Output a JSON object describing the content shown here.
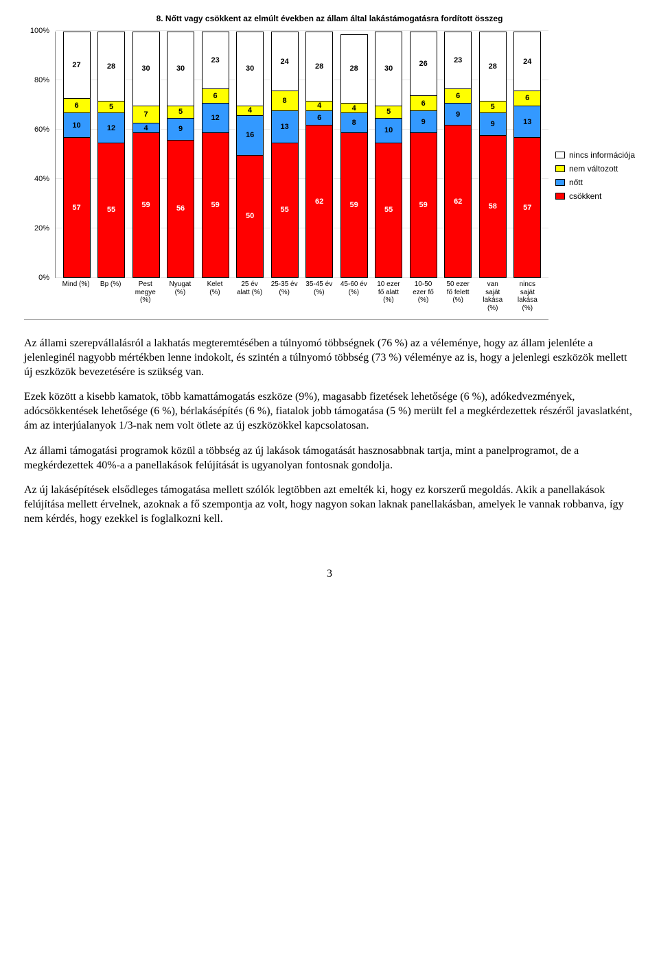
{
  "chart": {
    "title": "8. Nőtt vagy csökkent az elmúlt években az állam által lakástámogatásra fordított összeg",
    "type": "stacked-bar-100",
    "y_ticks": [
      "0%",
      "20%",
      "40%",
      "60%",
      "80%",
      "100%"
    ],
    "y_tick_step_pct": 20,
    "series": [
      {
        "key": "csokkent",
        "label": "csökkent",
        "color": "#ff0000",
        "text": "#ffffff"
      },
      {
        "key": "nott",
        "label": "nőtt",
        "color": "#3399ff",
        "text": "#000000"
      },
      {
        "key": "nem_valtozott",
        "label": "nem változott",
        "color": "#ffff00",
        "text": "#000000"
      },
      {
        "key": "nincs_info",
        "label": "nincs információja",
        "color": "#ffffff",
        "text": "#000000"
      }
    ],
    "categories": [
      "Mind (%)",
      "Bp (%)",
      "Pest megye (%)",
      "Nyugat (%)",
      "Kelet (%)",
      "25 év alatt (%)",
      "25-35 év (%)",
      "35-45 év (%)",
      "45-60 év (%)",
      "10 ezer fő alatt (%)",
      "10-50 ezer fő (%)",
      "50 ezer fő felett (%)",
      "van saját lakása (%)",
      "nincs saját lakása (%)"
    ],
    "data": [
      {
        "csokkent": 57,
        "nott": 10,
        "nem_valtozott": 6,
        "nincs_info": 27
      },
      {
        "csokkent": 55,
        "nott": 12,
        "nem_valtozott": 5,
        "nincs_info": 28
      },
      {
        "csokkent": 59,
        "nott": 4,
        "nem_valtozott": 7,
        "nincs_info": 30
      },
      {
        "csokkent": 56,
        "nott": 9,
        "nem_valtozott": 5,
        "nincs_info": 30
      },
      {
        "csokkent": 59,
        "nott": 12,
        "nem_valtozott": 6,
        "nincs_info": 23
      },
      {
        "csokkent": 50,
        "nott": 16,
        "nem_valtozott": 4,
        "nincs_info": 30
      },
      {
        "csokkent": 55,
        "nott": 13,
        "nem_valtozott": 8,
        "nincs_info": 24
      },
      {
        "csokkent": 62,
        "nott": 6,
        "nem_valtozott": 4,
        "nincs_info": 28
      },
      {
        "csokkent": 59,
        "nott": 8,
        "nem_valtozott": 4,
        "nincs_info": 28
      },
      {
        "csokkent": 55,
        "nott": 10,
        "nem_valtozott": 5,
        "nincs_info": 30
      },
      {
        "csokkent": 59,
        "nott": 9,
        "nem_valtozott": 6,
        "nincs_info": 26
      },
      {
        "csokkent": 62,
        "nott": 9,
        "nem_valtozott": 6,
        "nincs_info": 23
      },
      {
        "csokkent": 58,
        "nott": 9,
        "nem_valtozott": 5,
        "nincs_info": 28
      },
      {
        "csokkent": 57,
        "nott": 13,
        "nem_valtozott": 6,
        "nincs_info": 24
      }
    ],
    "grid_color": "#e5e5e5",
    "bar_border": "#000000",
    "legend_position": "right"
  },
  "paragraphs": {
    "p1": "Az állami szerepvállalásról a lakhatás megteremtésében a túlnyomó többségnek (76 %) az a véleménye, hogy az állam jelenléte a jelenleginél nagyobb mértékben lenne indokolt, és szintén a túlnyomó többség (73 %) véleménye az is, hogy a jelenlegi eszközök mellett új eszközök bevezetésére is szükség van.",
    "p2": "Ezek között a kisebb kamatok, több kamattámogatás eszköze (9%), magasabb fizetések lehetősége (6 %), adókedvezmények, adócsökkentések lehetősége (6 %), bérlakásépítés (6 %), fiatalok jobb támogatása (5 %) merült fel a megkérdezettek részéről javaslatként, ám az interjúalanyok 1/3-nak nem volt ötlete az új eszközökkel kapcsolatosan.",
    "p3": "Az állami támogatási programok közül a többség az új lakások támogatását hasznosabbnak tartja, mint a panelprogramot, de a megkérdezettek 40%-a a panellakások felújítását is ugyanolyan fontosnak gondolja.",
    "p4": "Az új lakásépítések elsődleges támogatása mellett szólók legtöbben azt emelték ki, hogy ez korszerű megoldás. Akik a panellakások felújítása mellett érvelnek, azoknak a fő szempontja az volt, hogy nagyon sokan laknak panellakásban, amelyek le vannak robbanva, így nem kérdés, hogy ezekkel is foglalkozni kell."
  },
  "page_number": "3"
}
